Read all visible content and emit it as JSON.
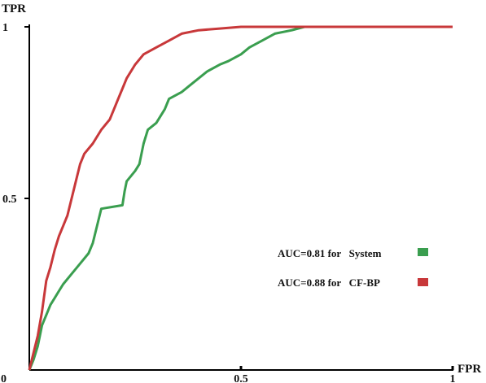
{
  "chart_data": {
    "type": "line",
    "xlabel": "FPR",
    "ylabel": "TPR",
    "xlim": [
      0,
      1
    ],
    "ylim": [
      0,
      1
    ],
    "x_ticks": [
      {
        "value": 0,
        "label": "0"
      },
      {
        "value": 0.5,
        "label": "0.5"
      },
      {
        "value": 1,
        "label": "1"
      }
    ],
    "y_ticks": [
      {
        "value": 0.5,
        "label": "0.5"
      },
      {
        "value": 1,
        "label": "1"
      }
    ],
    "grid": false,
    "legend_position": "bottom-right",
    "series": [
      {
        "name": "System",
        "legend_label": "AUC=0.81 for   System",
        "color": "#3a9e4f",
        "points": [
          [
            0,
            0
          ],
          [
            0.01,
            0.03
          ],
          [
            0.02,
            0.07
          ],
          [
            0.025,
            0.1
          ],
          [
            0.03,
            0.13
          ],
          [
            0.04,
            0.16
          ],
          [
            0.05,
            0.19
          ],
          [
            0.06,
            0.21
          ],
          [
            0.07,
            0.23
          ],
          [
            0.08,
            0.25
          ],
          [
            0.1,
            0.28
          ],
          [
            0.12,
            0.31
          ],
          [
            0.14,
            0.34
          ],
          [
            0.15,
            0.37
          ],
          [
            0.16,
            0.42
          ],
          [
            0.17,
            0.47
          ],
          [
            0.22,
            0.48
          ],
          [
            0.225,
            0.52
          ],
          [
            0.23,
            0.55
          ],
          [
            0.25,
            0.58
          ],
          [
            0.26,
            0.6
          ],
          [
            0.27,
            0.66
          ],
          [
            0.28,
            0.7
          ],
          [
            0.3,
            0.72
          ],
          [
            0.32,
            0.76
          ],
          [
            0.33,
            0.79
          ],
          [
            0.36,
            0.81
          ],
          [
            0.38,
            0.83
          ],
          [
            0.4,
            0.85
          ],
          [
            0.42,
            0.87
          ],
          [
            0.45,
            0.89
          ],
          [
            0.47,
            0.9
          ],
          [
            0.5,
            0.92
          ],
          [
            0.52,
            0.94
          ],
          [
            0.55,
            0.96
          ],
          [
            0.58,
            0.98
          ],
          [
            0.62,
            0.99
          ],
          [
            0.65,
            1.0
          ],
          [
            1.0,
            1.0
          ]
        ]
      },
      {
        "name": "CF-BP",
        "legend_label": "AUC=0.88 for   CF-BP",
        "color": "#c8383a",
        "points": [
          [
            0,
            0
          ],
          [
            0.01,
            0.05
          ],
          [
            0.02,
            0.1
          ],
          [
            0.03,
            0.17
          ],
          [
            0.04,
            0.26
          ],
          [
            0.05,
            0.3
          ],
          [
            0.06,
            0.35
          ],
          [
            0.07,
            0.39
          ],
          [
            0.08,
            0.42
          ],
          [
            0.09,
            0.45
          ],
          [
            0.1,
            0.5
          ],
          [
            0.11,
            0.55
          ],
          [
            0.12,
            0.6
          ],
          [
            0.13,
            0.63
          ],
          [
            0.15,
            0.66
          ],
          [
            0.17,
            0.7
          ],
          [
            0.19,
            0.73
          ],
          [
            0.2,
            0.76
          ],
          [
            0.21,
            0.79
          ],
          [
            0.22,
            0.82
          ],
          [
            0.23,
            0.85
          ],
          [
            0.25,
            0.89
          ],
          [
            0.27,
            0.92
          ],
          [
            0.3,
            0.94
          ],
          [
            0.33,
            0.96
          ],
          [
            0.36,
            0.98
          ],
          [
            0.4,
            0.99
          ],
          [
            0.45,
            0.995
          ],
          [
            0.5,
            1.0
          ],
          [
            1.0,
            1.0
          ]
        ]
      }
    ]
  }
}
